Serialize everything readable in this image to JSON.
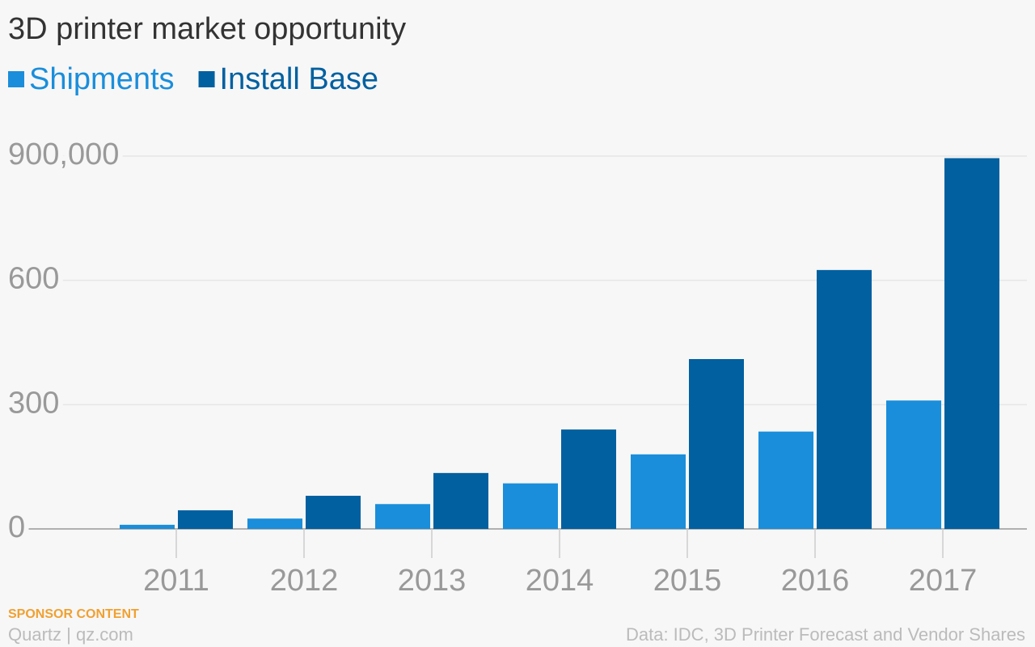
{
  "chart_data": {
    "type": "bar",
    "title": "3D printer market opportunity",
    "categories": [
      "2011",
      "2012",
      "2013",
      "2014",
      "2015",
      "2016",
      "2017"
    ],
    "series": [
      {
        "name": "Shipments",
        "color": "#1a8edb",
        "values": [
          10000,
          25000,
          60000,
          110000,
          180000,
          235000,
          310000
        ]
      },
      {
        "name": "Install Base",
        "color": "#0060a0",
        "values": [
          45000,
          80000,
          135000,
          240000,
          410000,
          625000,
          895000
        ]
      }
    ],
    "ylim": [
      0,
      900000
    ],
    "yticks": [
      0,
      {
        "value": 300000,
        "label": "300"
      },
      {
        "value": 600000,
        "label": "600"
      },
      {
        "value": 900000,
        "label": "900,000"
      }
    ],
    "grid": true,
    "legend": "top",
    "sponsor": "SPONSOR CONTENT",
    "credit": "Quartz | qz.com",
    "source": "Data: IDC, 3D Printer Forecast and Vendor Shares"
  }
}
